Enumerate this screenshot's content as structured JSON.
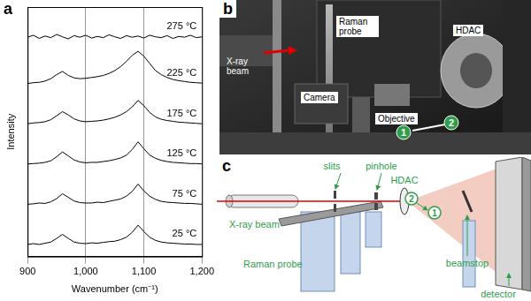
{
  "chart_panel_label": "a",
  "chart_data": {
    "type": "line",
    "x_label": "Wavenumber (cm⁻¹)",
    "y_label": "Intensity",
    "x": [
      900,
      910,
      920,
      930,
      940,
      950,
      960,
      970,
      980,
      990,
      1000,
      1010,
      1020,
      1030,
      1040,
      1050,
      1060,
      1070,
      1080,
      1090,
      1100,
      1110,
      1120,
      1130,
      1140,
      1150,
      1160,
      1170,
      1180,
      1190,
      1200
    ],
    "series": [
      {
        "name": "25 °C",
        "values": [
          0.3,
          0.32,
          0.3,
          0.33,
          0.36,
          0.45,
          0.55,
          0.45,
          0.36,
          0.33,
          0.32,
          0.34,
          0.33,
          0.35,
          0.37,
          0.38,
          0.42,
          0.48,
          0.6,
          0.78,
          0.62,
          0.48,
          0.4,
          0.36,
          0.34,
          0.33,
          0.32,
          0.31,
          0.31,
          0.3,
          0.3
        ]
      },
      {
        "name": "75 °C",
        "values": [
          1.3,
          1.31,
          1.33,
          1.32,
          1.36,
          1.44,
          1.56,
          1.47,
          1.38,
          1.34,
          1.33,
          1.33,
          1.35,
          1.34,
          1.37,
          1.4,
          1.43,
          1.5,
          1.62,
          1.8,
          1.63,
          1.5,
          1.42,
          1.37,
          1.35,
          1.34,
          1.33,
          1.32,
          1.32,
          1.31,
          1.3
        ]
      },
      {
        "name": "125 °C",
        "values": [
          2.3,
          2.31,
          2.32,
          2.34,
          2.38,
          2.48,
          2.6,
          2.5,
          2.4,
          2.35,
          2.33,
          2.34,
          2.34,
          2.36,
          2.38,
          2.41,
          2.45,
          2.52,
          2.66,
          2.85,
          2.68,
          2.52,
          2.44,
          2.39,
          2.36,
          2.34,
          2.33,
          2.32,
          2.31,
          2.31,
          2.3
        ]
      },
      {
        "name": "175 °C",
        "values": [
          3.3,
          3.32,
          3.33,
          3.35,
          3.4,
          3.5,
          3.6,
          3.52,
          3.42,
          3.37,
          3.35,
          3.36,
          3.37,
          3.39,
          3.42,
          3.46,
          3.52,
          3.6,
          3.72,
          3.88,
          3.75,
          3.58,
          3.47,
          3.41,
          3.38,
          3.36,
          3.34,
          3.33,
          3.32,
          3.31,
          3.3
        ]
      },
      {
        "name": "225 °C",
        "values": [
          4.3,
          4.32,
          4.33,
          4.36,
          4.42,
          4.52,
          4.6,
          4.5,
          4.44,
          4.42,
          4.43,
          4.45,
          4.47,
          4.5,
          4.55,
          4.62,
          4.72,
          4.85,
          5.0,
          5.1,
          4.98,
          4.8,
          4.62,
          4.52,
          4.45,
          4.4,
          4.37,
          4.35,
          4.33,
          4.32,
          4.31
        ]
      },
      {
        "name": "275 °C",
        "values": [
          5.45,
          5.5,
          5.42,
          5.48,
          5.44,
          5.52,
          5.46,
          5.41,
          5.49,
          5.45,
          5.5,
          5.43,
          5.47,
          5.44,
          5.51,
          5.46,
          5.42,
          5.49,
          5.45,
          5.48,
          5.43,
          5.5,
          5.46,
          5.44,
          5.49,
          5.42,
          5.47,
          5.45,
          5.5,
          5.44,
          5.46
        ]
      }
    ],
    "xlim": [
      900,
      1200
    ],
    "xticks": [
      900,
      1000,
      1100,
      1200
    ],
    "ylim": [
      0,
      6.2
    ],
    "grid": true,
    "tick_labels": "x",
    "color": "#000000",
    "line_style": "solid"
  },
  "photo": {
    "panel_label": "b",
    "labels": {
      "xray": "X-ray beam",
      "raman": "Raman probe",
      "hdac": "HDAC",
      "camera": "Camera",
      "objective": "Objective"
    },
    "markers": [
      "1",
      "2"
    ]
  },
  "diagram": {
    "panel_label": "c",
    "labels": {
      "xray": "X-ray beam",
      "slits": "slits",
      "pinhole": "pinhole",
      "hdac": "HDAC",
      "raman": "Raman probe",
      "beamstop": "beamstop",
      "detector": "detector"
    },
    "markers": [
      "1",
      "2"
    ]
  }
}
